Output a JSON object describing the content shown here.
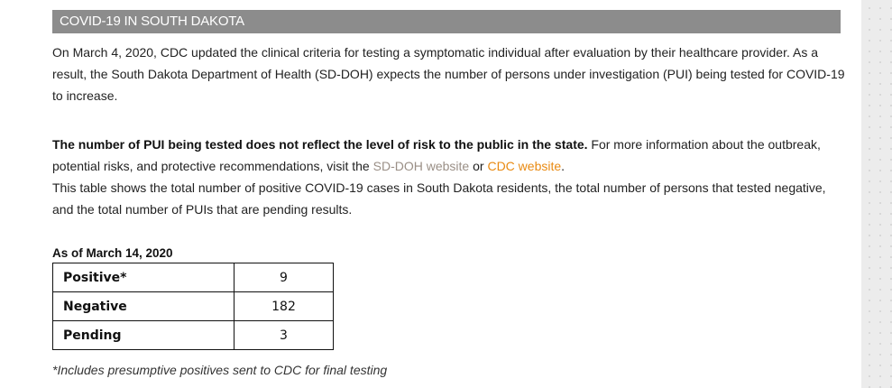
{
  "section": {
    "heading": "COVID-19 IN SOUTH DAKOTA"
  },
  "intro": {
    "text": "On March 4, 2020, CDC updated the clinical criteria for testing a symptomatic individual after evaluation by their healthcare provider. As a result, the South Dakota Department of Health (SD-DOH) expects the number of persons under investigation (PUI) being tested for COVID-19 to increase."
  },
  "details": {
    "bold_statement": "The number of PUI being tested does not reflect the level of risk to the public in the state.",
    "text_before_links": " For more information about the outbreak, potential risks, and protective recommendations, visit the ",
    "sd_doh_link": "SD-DOH website",
    "link_joiner": " or ",
    "cdc_link": "CDC website",
    "link_end": ".",
    "table_description": "This table shows the total number of positive COVID-19 cases in South Dakota residents, the total number of persons that tested negative, and the total number of PUIs that are pending results."
  },
  "table": {
    "as_of": "As of March 14, 2020",
    "rows": [
      {
        "label": "Positive*",
        "value": "9"
      },
      {
        "label": "Negative",
        "value": "182"
      },
      {
        "label": "Pending",
        "value": "3"
      }
    ],
    "footnote": "*Includes presumptive positives sent to CDC for final testing"
  },
  "colors": {
    "banner_bg": "#8c8c8c",
    "sd_doh_link": "#9a8f86",
    "cdc_link": "#e98a12"
  }
}
